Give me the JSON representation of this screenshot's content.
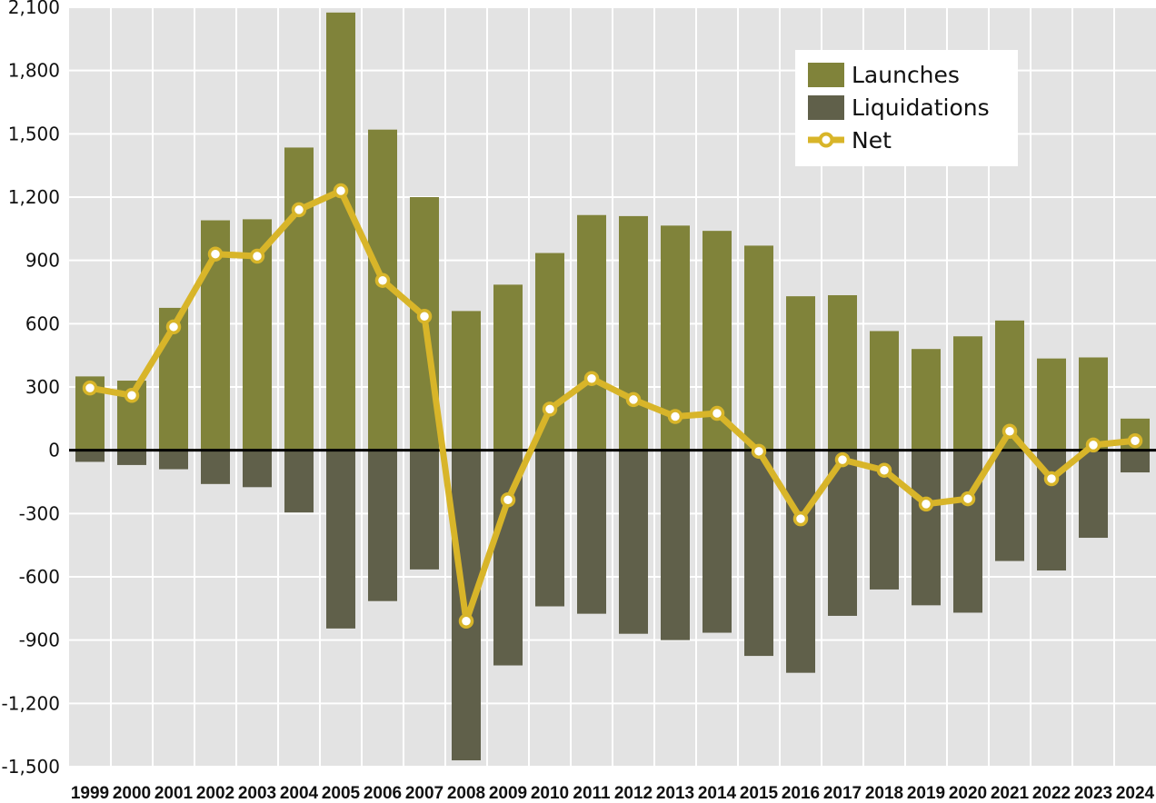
{
  "chart_data": {
    "type": "bar",
    "categories": [
      "1999",
      "2000",
      "2001",
      "2002",
      "2003",
      "2004",
      "2005",
      "2006",
      "2007",
      "2008",
      "2009",
      "2010",
      "2011",
      "2012",
      "2013",
      "2014",
      "2015",
      "2016",
      "2017",
      "2018",
      "2019",
      "2020",
      "2021",
      "2022",
      "2023",
      "2024"
    ],
    "series": [
      {
        "name": "Launches",
        "type": "bar",
        "color": "#80833a",
        "values": [
          350,
          330,
          675,
          1090,
          1095,
          1435,
          2075,
          1520,
          1200,
          660,
          785,
          935,
          1115,
          1110,
          1065,
          1040,
          970,
          730,
          735,
          565,
          480,
          540,
          615,
          435,
          440,
          150
        ]
      },
      {
        "name": "Liquidations",
        "type": "bar",
        "color": "#60604a",
        "values": [
          -55,
          -70,
          -90,
          -160,
          -175,
          -295,
          -845,
          -715,
          -565,
          -1470,
          -1020,
          -740,
          -775,
          -870,
          -900,
          -865,
          -975,
          -1055,
          -785,
          -660,
          -735,
          -770,
          -525,
          -570,
          -415,
          -105
        ]
      },
      {
        "name": "Net",
        "type": "line",
        "color": "#d8b529",
        "values": [
          295,
          260,
          585,
          930,
          920,
          1140,
          1230,
          805,
          635,
          -810,
          -235,
          195,
          340,
          240,
          160,
          175,
          -5,
          -325,
          -45,
          -95,
          -255,
          -230,
          90,
          -135,
          25,
          45
        ]
      }
    ],
    "ylim": [
      -1500,
      2100
    ],
    "yticks": [
      "2,100",
      "1,800",
      "1,500",
      "1,200",
      "900",
      "600",
      "300",
      "0",
      "-300",
      "-600",
      "-900",
      "-1,200",
      "-1,500"
    ],
    "ytick_values": [
      2100,
      1800,
      1500,
      1200,
      900,
      600,
      300,
      0,
      -300,
      -600,
      -900,
      -1200,
      -1500
    ],
    "grid": true,
    "legend_position": "top-right",
    "background_color": "#e3e3e3",
    "line_marker_fill": "#ffffff"
  }
}
